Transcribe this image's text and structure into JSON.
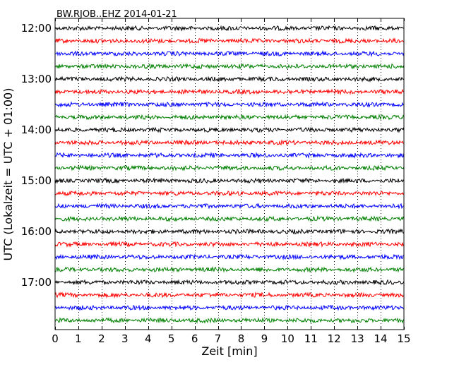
{
  "chart_data": {
    "type": "line",
    "subtype": "dayplot",
    "title": "BW.RJOB..EHZ 2014-01-21",
    "xlabel": "Zeit  [min]",
    "ylabel": "UTC (Lokalzeit = UTC + 01:00)",
    "xlim": [
      0,
      15
    ],
    "x_ticks": [
      0,
      1,
      2,
      3,
      4,
      5,
      6,
      7,
      8,
      9,
      10,
      11,
      12,
      13,
      14,
      15
    ],
    "vertical_grid": true,
    "grid_style": "dotted",
    "y_tick_labels": [
      "12:00",
      "13:00",
      "14:00",
      "15:00",
      "16:00",
      "17:00"
    ],
    "interval_minutes": 15,
    "trace_start_times": [
      "12:00",
      "12:15",
      "12:30",
      "12:45",
      "13:00",
      "13:15",
      "13:30",
      "13:45",
      "14:00",
      "14:15",
      "14:30",
      "14:45",
      "15:00",
      "15:15",
      "15:30",
      "15:45",
      "16:00",
      "16:15",
      "16:30",
      "16:45",
      "17:00",
      "17:15",
      "17:30",
      "17:45"
    ],
    "trace_colors": [
      "#000000",
      "#ff0000",
      "#0000ff",
      "#008000"
    ]
  }
}
